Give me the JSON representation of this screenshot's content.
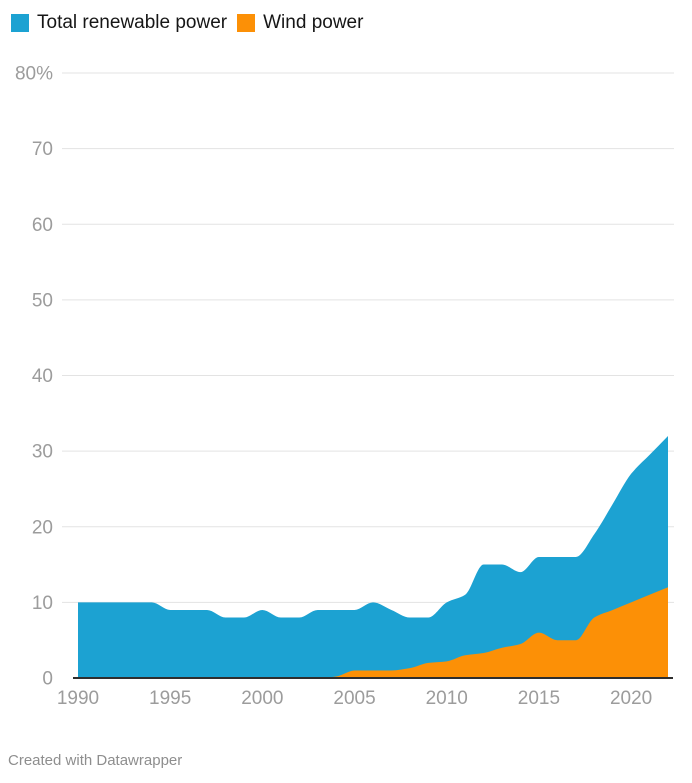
{
  "legend": {
    "items": [
      {
        "label": "Total renewable power",
        "color": "#1CA2D2"
      },
      {
        "label": "Wind power",
        "color": "#FC9006"
      }
    ]
  },
  "footer": {
    "text": "Created with Datawrapper"
  },
  "chart_data": {
    "type": "area",
    "title": "",
    "xlabel": "",
    "ylabel": "",
    "legend_position": "top",
    "grid": true,
    "stacked": false,
    "interpolation": "monotone",
    "ylim": [
      0,
      80
    ],
    "xlim": [
      1990,
      2022
    ],
    "x": [
      1990,
      1991,
      1992,
      1993,
      1994,
      1995,
      1996,
      1997,
      1998,
      1999,
      2000,
      2001,
      2002,
      2003,
      2004,
      2005,
      2006,
      2007,
      2008,
      2009,
      2010,
      2011,
      2012,
      2013,
      2014,
      2015,
      2016,
      2017,
      2018,
      2019,
      2020,
      2021,
      2022
    ],
    "series": [
      {
        "name": "Total renewable power",
        "color": "#1CA2D2",
        "values": [
          10,
          10,
          10,
          10,
          10,
          9,
          9,
          9,
          8,
          8,
          9,
          8,
          8,
          9,
          9,
          9,
          10,
          9,
          8,
          8,
          10,
          11,
          15,
          15,
          14,
          16,
          16,
          16,
          19,
          23,
          27,
          29.5,
          32
        ]
      },
      {
        "name": "Wind power",
        "color": "#FC9006",
        "values": [
          0,
          0,
          0,
          0,
          0,
          0,
          0,
          0,
          0,
          0,
          0,
          0,
          0,
          0,
          0.2,
          1,
          1,
          1,
          1.3,
          2,
          2.2,
          3,
          3.3,
          4,
          4.5,
          6,
          5,
          5,
          8,
          9,
          10,
          11,
          12
        ]
      }
    ],
    "y_ticks": [
      {
        "v": 80,
        "label": "80%"
      },
      {
        "v": 70,
        "label": "70"
      },
      {
        "v": 60,
        "label": "60"
      },
      {
        "v": 50,
        "label": "50"
      },
      {
        "v": 40,
        "label": "40"
      },
      {
        "v": 30,
        "label": "30"
      },
      {
        "v": 20,
        "label": "20"
      },
      {
        "v": 10,
        "label": "10"
      },
      {
        "v": 0,
        "label": "0"
      }
    ],
    "x_ticks": [
      {
        "v": 1990,
        "label": "1990"
      },
      {
        "v": 1995,
        "label": "1995"
      },
      {
        "v": 2000,
        "label": "2000"
      },
      {
        "v": 2005,
        "label": "2005"
      },
      {
        "v": 2010,
        "label": "2010"
      },
      {
        "v": 2015,
        "label": "2015"
      },
      {
        "v": 2020,
        "label": "2020"
      }
    ],
    "colors": {
      "gridline": "#e3e3e3",
      "baseline": "#2e2e2e",
      "tick_text": "#9c9c9c"
    }
  }
}
